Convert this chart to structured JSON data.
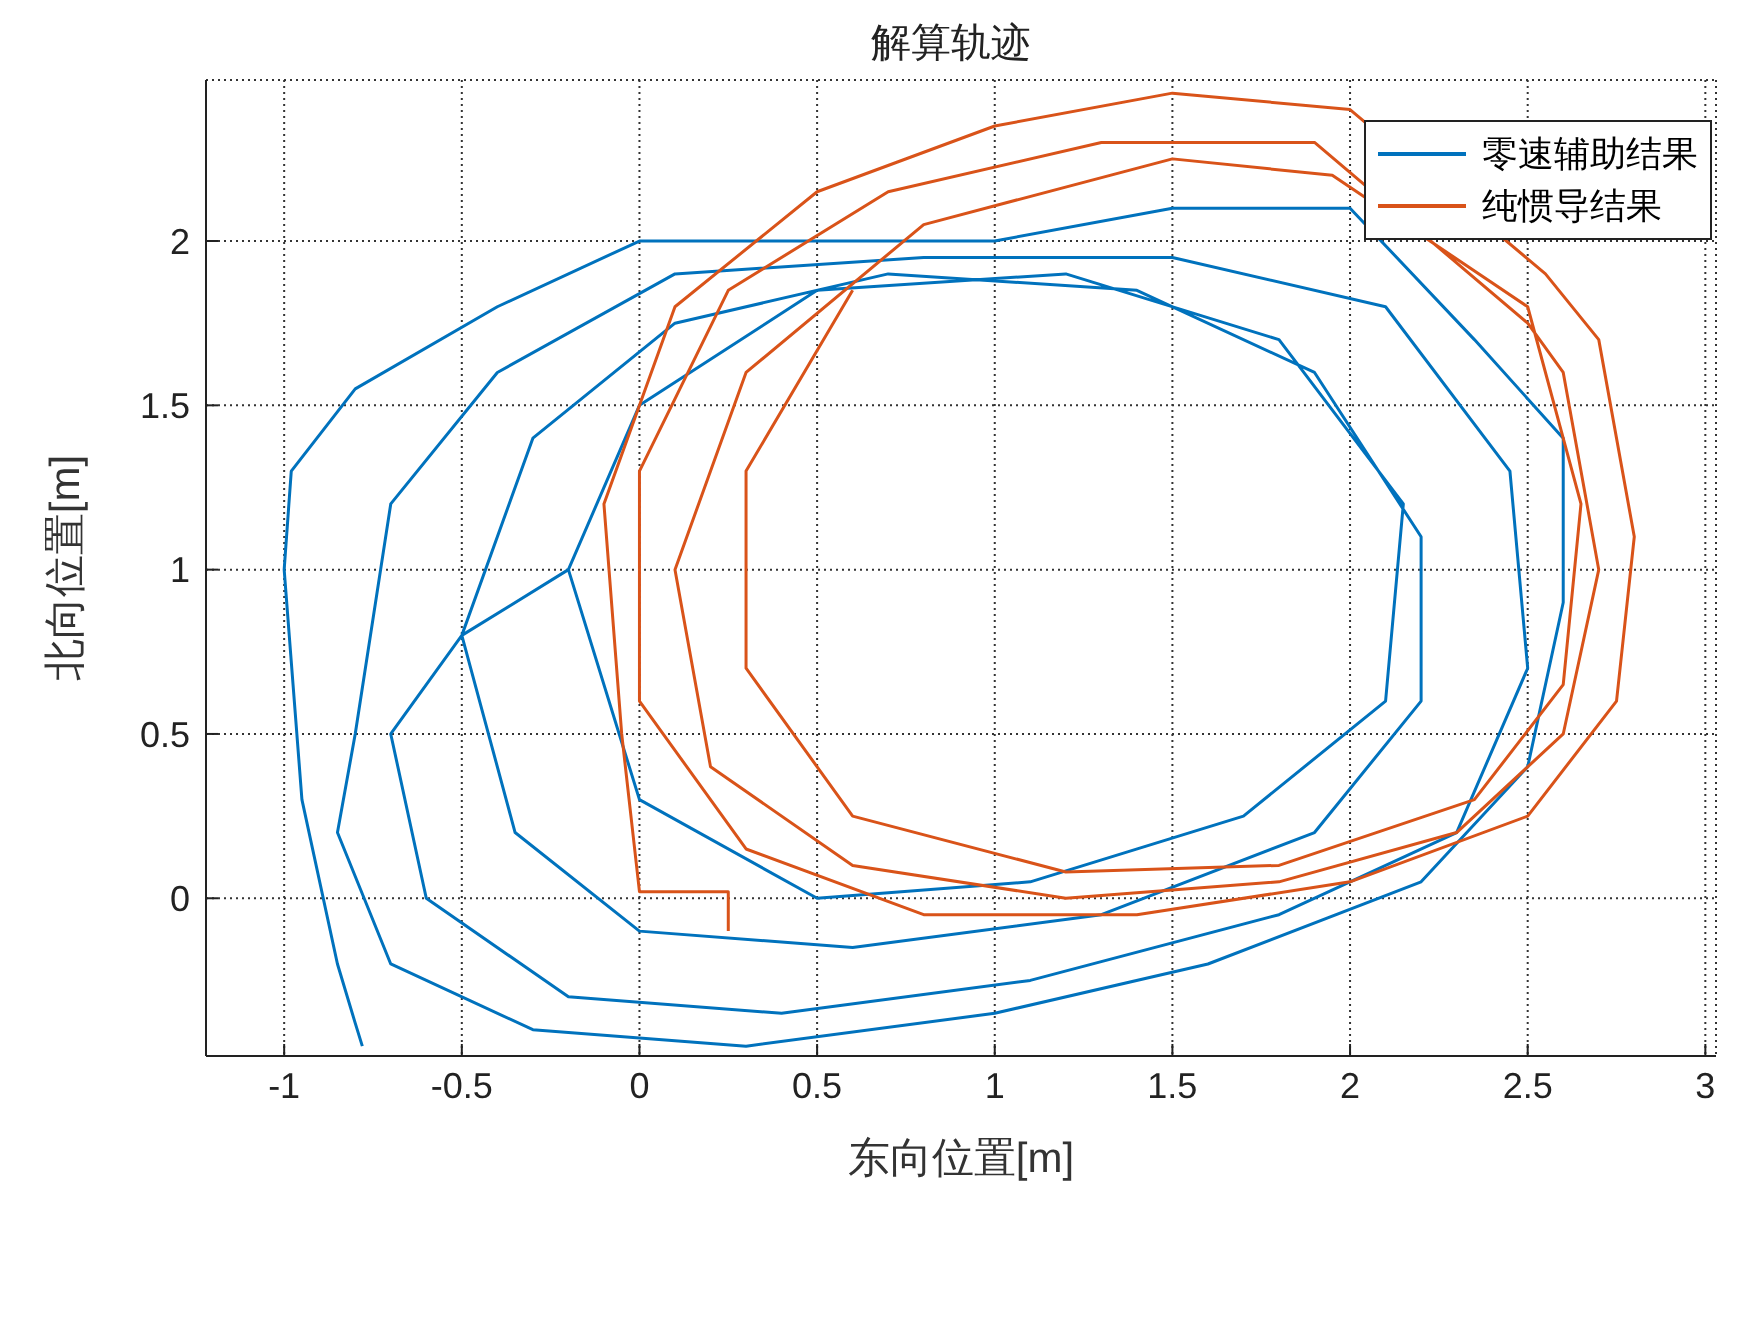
{
  "chart_data": {
    "type": "line",
    "title": "解算轨迹",
    "xlabel": "东向位置[m]",
    "ylabel": "北向位置[m]",
    "xlim": [
      -1.22,
      3.03
    ],
    "ylim": [
      -0.48,
      2.49
    ],
    "xticks": [
      -1,
      -0.5,
      0,
      0.5,
      1,
      1.5,
      2,
      2.5,
      3
    ],
    "yticks": [
      0,
      0.5,
      1,
      1.5,
      2
    ],
    "grid": true,
    "legend": "top right",
    "line_style": "solid",
    "series": [
      {
        "name": "零速辅助结果",
        "color": "#0072bd",
        "x": [
          -0.78,
          -0.8,
          -0.85,
          -0.95,
          -1.0,
          -0.98,
          -0.8,
          -0.4,
          0,
          0.5,
          1.0,
          1.5,
          2.0,
          2.35,
          2.6,
          2.6,
          2.5,
          2.2,
          1.6,
          1.0,
          0.3,
          -0.3,
          -0.7,
          -0.85,
          -0.8,
          -0.7,
          -0.4,
          0.1,
          0.8,
          1.5,
          2.1,
          2.45,
          2.5,
          2.3,
          1.8,
          1.1,
          0.4,
          -0.2,
          -0.6,
          -0.7,
          -0.5,
          -0.3,
          0.1,
          0.7,
          1.4,
          1.9,
          2.2,
          2.2,
          1.9,
          1.3,
          0.6,
          0.0,
          -0.35,
          -0.5,
          -0.2,
          0.0,
          0.5,
          1.2,
          1.8,
          2.15,
          2.1,
          1.7,
          1.1,
          0.5,
          0.0,
          -0.2
        ],
        "values": [
          -0.45,
          -0.38,
          -0.2,
          0.3,
          1.0,
          1.3,
          1.55,
          1.8,
          2.0,
          2.0,
          2.0,
          2.1,
          2.1,
          1.7,
          1.4,
          0.9,
          0.4,
          0.05,
          -0.2,
          -0.35,
          -0.45,
          -0.4,
          -0.2,
          0.2,
          0.5,
          1.2,
          1.6,
          1.9,
          1.95,
          1.95,
          1.8,
          1.3,
          0.7,
          0.2,
          -0.05,
          -0.25,
          -0.35,
          -0.3,
          0.0,
          0.5,
          0.8,
          1.4,
          1.75,
          1.9,
          1.85,
          1.6,
          1.1,
          0.6,
          0.2,
          -0.05,
          -0.15,
          -0.1,
          0.2,
          0.8,
          1.0,
          1.5,
          1.85,
          1.9,
          1.7,
          1.2,
          0.6,
          0.25,
          0.05,
          0.0,
          0.3,
          1.0
        ]
      },
      {
        "name": "纯惯导结果",
        "color": "#d95319",
        "x": [
          0.25,
          0.25,
          0,
          -0.05,
          -0.1,
          0.1,
          0.5,
          1.0,
          1.5,
          2.0,
          2.55,
          2.7,
          2.8,
          2.75,
          2.5,
          2.0,
          1.4,
          0.8,
          0.3,
          0.0,
          0.0,
          0.25,
          0.7,
          1.3,
          1.9,
          2.5,
          2.6,
          2.7,
          2.6,
          2.3,
          1.8,
          1.2,
          0.6,
          0.2,
          0.1,
          0.3,
          0.8,
          1.5,
          1.95,
          2.5,
          2.65,
          2.6,
          2.35,
          1.8,
          1.2,
          0.6,
          0.3,
          0.3,
          0.6
        ],
        "values": [
          -0.1,
          0.02,
          0.02,
          0.5,
          1.2,
          1.8,
          2.15,
          2.35,
          2.45,
          2.4,
          1.9,
          1.7,
          1.1,
          0.6,
          0.25,
          0.05,
          -0.05,
          -0.05,
          0.15,
          0.6,
          1.3,
          1.85,
          2.15,
          2.3,
          2.3,
          1.75,
          1.6,
          1.0,
          0.5,
          0.2,
          0.05,
          0.0,
          0.1,
          0.4,
          1.0,
          1.6,
          2.05,
          2.25,
          2.2,
          1.8,
          1.2,
          0.65,
          0.3,
          0.1,
          0.08,
          0.25,
          0.7,
          1.3,
          1.85
        ]
      }
    ]
  }
}
